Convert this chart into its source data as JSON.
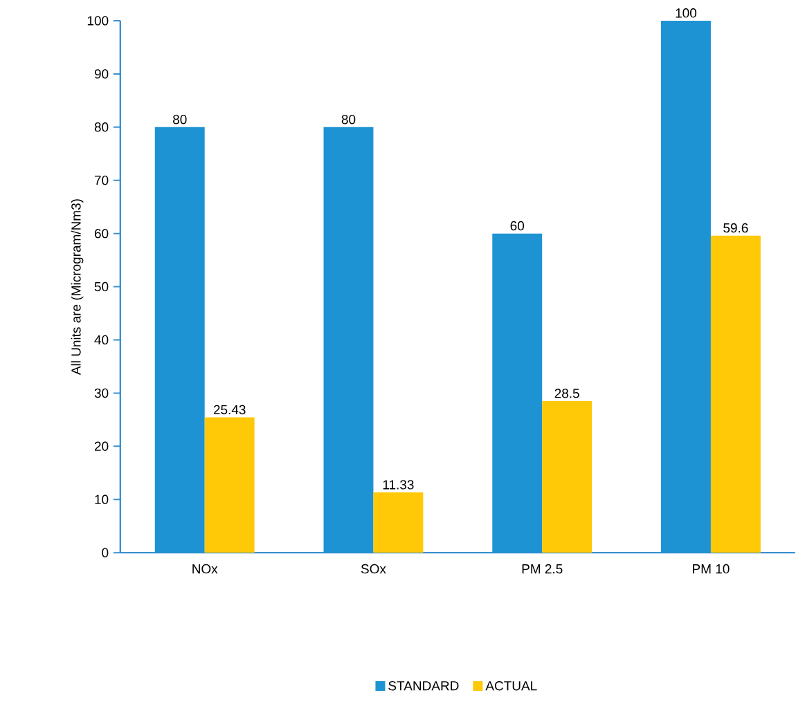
{
  "chart_data": {
    "type": "bar",
    "ylabel": "All Units are (Microgram/Nm3)",
    "categories": [
      "NOx",
      "SOx",
      "PM 2.5",
      "PM 10"
    ],
    "series": [
      {
        "name": "STANDARD",
        "color": "#1e93d3",
        "values": [
          80,
          80,
          60,
          100
        ]
      },
      {
        "name": "ACTUAL",
        "color": "#ffc907",
        "values": [
          25.43,
          11.33,
          28.5,
          59.6
        ]
      }
    ],
    "ylim": [
      0,
      100
    ],
    "yticks": [
      0,
      10,
      20,
      30,
      40,
      50,
      60,
      70,
      80,
      90,
      100
    ],
    "data_labels": true,
    "grid": false,
    "legend": "bottom"
  }
}
